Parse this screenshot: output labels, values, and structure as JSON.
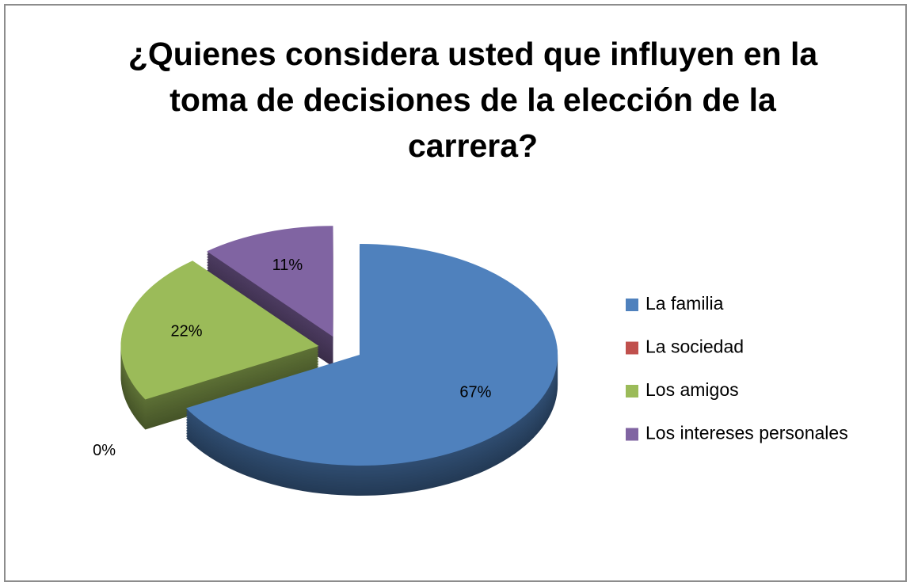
{
  "chart_data": {
    "type": "pie",
    "title": "¿Quienes considera usted que influyen en la toma de decisiones de la elección de la carrera?",
    "categories": [
      "La familia",
      "La sociedad",
      "Los amigos",
      "Los intereses personales"
    ],
    "values": [
      67,
      0,
      22,
      11
    ],
    "value_labels": [
      "67%",
      "0%",
      "22%",
      "11%"
    ],
    "colors": [
      "#4f81bd",
      "#c0504d",
      "#9bbb59",
      "#8064a2"
    ],
    "legend": "right"
  }
}
